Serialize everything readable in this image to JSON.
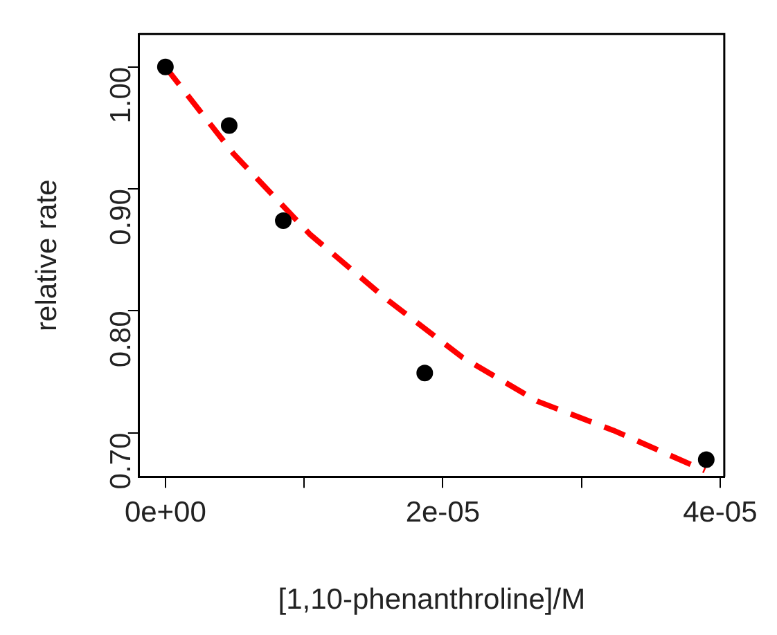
{
  "chart_data": {
    "type": "scatter",
    "xlabel": "[1,10-phenanthroline]/M",
    "ylabel": "relative rate",
    "series": [
      {
        "type": "scatter",
        "color": "#000000",
        "x": [
          0,
          4.6e-06,
          8.5e-06,
          1.87e-05,
          3.9e-05
        ],
        "values": [
          1.0,
          0.952,
          0.874,
          0.749,
          0.678
        ],
        "marker": "circle"
      },
      {
        "type": "line",
        "color": "#ff0000",
        "line_style": "dashed",
        "marker": "none",
        "x": [
          0,
          4.9e-06,
          1.04e-05,
          1.59e-05,
          2.14e-05,
          2.68e-05,
          3.23e-05,
          3.89e-05
        ],
        "values": [
          1.0,
          0.929,
          0.863,
          0.81,
          0.762,
          0.726,
          0.702,
          0.669
        ]
      }
    ],
    "xlim": [
      -1.9e-06,
      4.03e-05
    ],
    "xticks": [
      {
        "value": 0,
        "label": "0e+00"
      },
      {
        "value": 1e-05,
        "label": null
      },
      {
        "value": 2e-05,
        "label": "2e-05"
      },
      {
        "value": 3e-05,
        "label": null
      },
      {
        "value": 4e-05,
        "label": "4e-05"
      }
    ],
    "ylim": [
      0.664,
      1.027
    ],
    "yticks": [
      {
        "value": 0.7,
        "label": "0.70"
      },
      {
        "value": 0.8,
        "label": "0.80"
      },
      {
        "value": 0.9,
        "label": "0.90"
      },
      {
        "value": 1.0,
        "label": "1.00"
      }
    ],
    "grid": false,
    "legend": false
  }
}
